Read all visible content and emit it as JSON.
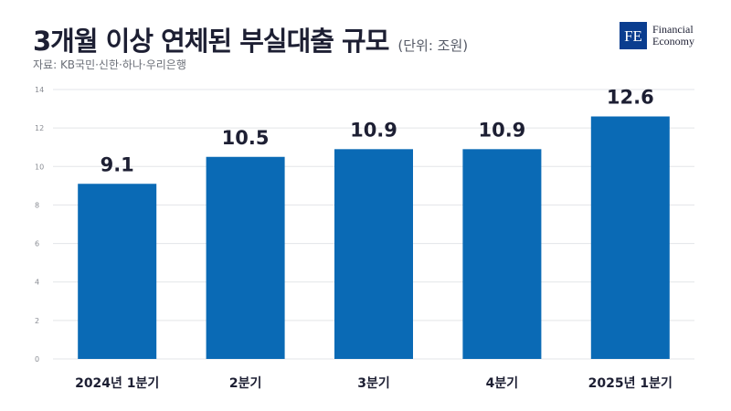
{
  "header": {
    "title": "3개월 이상 연체된 부실대출 규모",
    "unit": "(단위: 조원)",
    "source": "자료: KB국민·신한·하나·우리은행"
  },
  "logo": {
    "mark": "FE",
    "line1": "Financial",
    "line2": "Economy",
    "color": "#0a3d8f"
  },
  "chart_data": {
    "type": "bar",
    "categories": [
      "2024년 1분기",
      "2분기",
      "3분기",
      "4분기",
      "2025년 1분기"
    ],
    "values": [
      9.1,
      10.5,
      10.9,
      10.9,
      12.6
    ],
    "value_labels": [
      "9.1",
      "10.5",
      "10.9",
      "10.9",
      "12.6"
    ],
    "title": "3개월 이상 연체된 부실대출 규모",
    "ylabel": "",
    "xlabel": "",
    "ylim": [
      0,
      14
    ],
    "yticks": [
      0,
      2,
      4,
      6,
      8,
      10,
      12,
      14
    ],
    "grid": true,
    "bar_color": "#0a6ab5"
  }
}
